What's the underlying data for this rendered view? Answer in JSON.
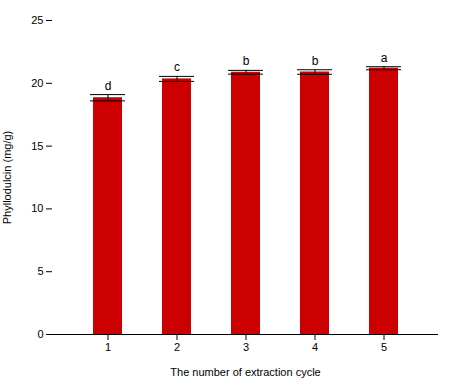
{
  "chart_data": {
    "type": "bar",
    "categories": [
      1,
      2,
      3,
      4,
      5
    ],
    "values": [
      18.85,
      20.35,
      20.88,
      20.9,
      21.2
    ],
    "errors": [
      0.25,
      0.2,
      0.15,
      0.18,
      0.12
    ],
    "labels": [
      "d",
      "c",
      "b",
      "b",
      "a"
    ],
    "color": "#CC0000",
    "ylabel": "Phyllodulcin (mg/g)",
    "xlabel": "The number of extraction cycle",
    "ylim": [
      0,
      25
    ],
    "yticks": [
      0,
      5,
      10,
      15,
      20,
      25
    ],
    "grid": false
  }
}
